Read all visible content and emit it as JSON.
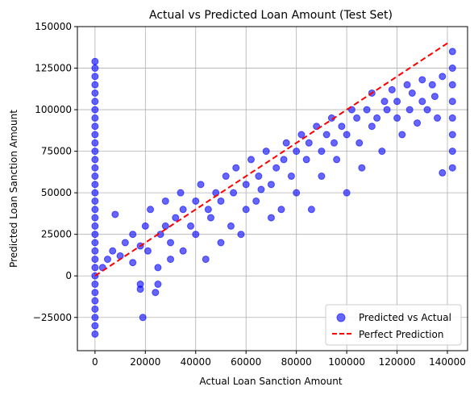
{
  "chart_data": {
    "type": "scatter",
    "title": "Actual vs Predicted Loan Amount (Test Set)",
    "xlabel": "Actual Loan Sanction Amount",
    "ylabel": "Predicted Loan Sanction Amount",
    "xlim": [
      -7000,
      148000
    ],
    "ylim": [
      -45000,
      150000
    ],
    "x_ticks": [
      0,
      20000,
      40000,
      60000,
      80000,
      100000,
      120000,
      140000
    ],
    "y_ticks": [
      -25000,
      0,
      25000,
      50000,
      75000,
      100000,
      125000,
      150000
    ],
    "x_tick_labels": [
      "0",
      "20000",
      "40000",
      "60000",
      "80000",
      "100000",
      "120000",
      "140000"
    ],
    "y_tick_labels": [
      "−25000",
      "0",
      "25000",
      "50000",
      "75000",
      "100000",
      "125000",
      "150000"
    ],
    "grid": true,
    "legend_position": "lower-right",
    "colors": {
      "scatter": "#0000ff",
      "line": "#ff0000"
    },
    "series": [
      {
        "name": "Predicted vs Actual",
        "kind": "scatter",
        "alpha": 0.6,
        "points": [
          [
            0,
            -35000
          ],
          [
            0,
            -30000
          ],
          [
            0,
            -25000
          ],
          [
            0,
            -20000
          ],
          [
            0,
            -15000
          ],
          [
            0,
            -10000
          ],
          [
            0,
            -5000
          ],
          [
            0,
            0
          ],
          [
            0,
            5000
          ],
          [
            0,
            10000
          ],
          [
            0,
            15000
          ],
          [
            0,
            20000
          ],
          [
            0,
            25000
          ],
          [
            0,
            30000
          ],
          [
            0,
            35000
          ],
          [
            0,
            40000
          ],
          [
            0,
            45000
          ],
          [
            0,
            50000
          ],
          [
            0,
            55000
          ],
          [
            0,
            60000
          ],
          [
            0,
            65000
          ],
          [
            0,
            70000
          ],
          [
            0,
            75000
          ],
          [
            0,
            80000
          ],
          [
            0,
            85000
          ],
          [
            0,
            90000
          ],
          [
            0,
            95000
          ],
          [
            0,
            100000
          ],
          [
            0,
            105000
          ],
          [
            0,
            110000
          ],
          [
            0,
            115000
          ],
          [
            0,
            120000
          ],
          [
            0,
            125000
          ],
          [
            0,
            129000
          ],
          [
            3000,
            5000
          ],
          [
            5000,
            10000
          ],
          [
            7000,
            15000
          ],
          [
            8000,
            37000
          ],
          [
            10000,
            12000
          ],
          [
            12000,
            20000
          ],
          [
            15000,
            8000
          ],
          [
            15000,
            25000
          ],
          [
            18000,
            18000
          ],
          [
            18000,
            -5000
          ],
          [
            18000,
            -8000
          ],
          [
            19000,
            -25000
          ],
          [
            20000,
            30000
          ],
          [
            21000,
            15000
          ],
          [
            22000,
            40000
          ],
          [
            24000,
            -10000
          ],
          [
            25000,
            -5000
          ],
          [
            25000,
            5000
          ],
          [
            26000,
            25000
          ],
          [
            28000,
            30000
          ],
          [
            28000,
            45000
          ],
          [
            30000,
            20000
          ],
          [
            30000,
            10000
          ],
          [
            32000,
            35000
          ],
          [
            34000,
            50000
          ],
          [
            35000,
            15000
          ],
          [
            35000,
            40000
          ],
          [
            38000,
            30000
          ],
          [
            40000,
            45000
          ],
          [
            40000,
            25000
          ],
          [
            42000,
            55000
          ],
          [
            44000,
            10000
          ],
          [
            45000,
            40000
          ],
          [
            46000,
            35000
          ],
          [
            48000,
            50000
          ],
          [
            50000,
            45000
          ],
          [
            50000,
            20000
          ],
          [
            52000,
            60000
          ],
          [
            54000,
            30000
          ],
          [
            55000,
            50000
          ],
          [
            56000,
            65000
          ],
          [
            58000,
            25000
          ],
          [
            60000,
            55000
          ],
          [
            60000,
            40000
          ],
          [
            62000,
            70000
          ],
          [
            64000,
            45000
          ],
          [
            65000,
            60000
          ],
          [
            66000,
            52000
          ],
          [
            68000,
            75000
          ],
          [
            70000,
            55000
          ],
          [
            70000,
            35000
          ],
          [
            72000,
            65000
          ],
          [
            74000,
            40000
          ],
          [
            75000,
            70000
          ],
          [
            76000,
            80000
          ],
          [
            78000,
            60000
          ],
          [
            80000,
            75000
          ],
          [
            80000,
            50000
          ],
          [
            82000,
            85000
          ],
          [
            84000,
            70000
          ],
          [
            85000,
            80000
          ],
          [
            86000,
            40000
          ],
          [
            88000,
            90000
          ],
          [
            90000,
            75000
          ],
          [
            90000,
            60000
          ],
          [
            92000,
            85000
          ],
          [
            94000,
            95000
          ],
          [
            95000,
            80000
          ],
          [
            96000,
            70000
          ],
          [
            98000,
            90000
          ],
          [
            100000,
            85000
          ],
          [
            100000,
            50000
          ],
          [
            102000,
            100000
          ],
          [
            104000,
            95000
          ],
          [
            105000,
            80000
          ],
          [
            106000,
            65000
          ],
          [
            108000,
            100000
          ],
          [
            110000,
            90000
          ],
          [
            110000,
            110000
          ],
          [
            112000,
            95000
          ],
          [
            114000,
            75000
          ],
          [
            115000,
            105000
          ],
          [
            116000,
            100000
          ],
          [
            118000,
            112000
          ],
          [
            120000,
            95000
          ],
          [
            120000,
            105000
          ],
          [
            122000,
            85000
          ],
          [
            124000,
            115000
          ],
          [
            125000,
            100000
          ],
          [
            126000,
            110000
          ],
          [
            128000,
            92000
          ],
          [
            130000,
            118000
          ],
          [
            130000,
            105000
          ],
          [
            132000,
            100000
          ],
          [
            134000,
            115000
          ],
          [
            135000,
            108000
          ],
          [
            136000,
            95000
          ],
          [
            138000,
            120000
          ],
          [
            138000,
            62000
          ],
          [
            142000,
            65000
          ],
          [
            142000,
            75000
          ],
          [
            142000,
            85000
          ],
          [
            142000,
            95000
          ],
          [
            142000,
            105000
          ],
          [
            142000,
            115000
          ],
          [
            142000,
            125000
          ],
          [
            142000,
            135000
          ]
        ]
      },
      {
        "name": "Perfect Prediction",
        "kind": "line",
        "style": "dashed",
        "x": [
          0,
          141000
        ],
        "y": [
          0,
          141000
        ]
      }
    ]
  }
}
